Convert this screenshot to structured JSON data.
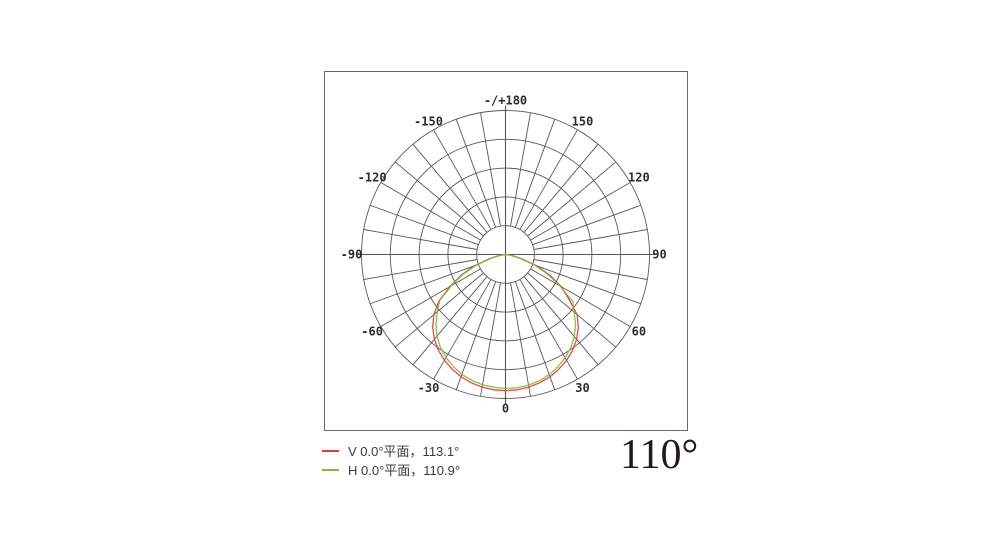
{
  "chart_data": {
    "type": "polar",
    "subtype": "photometric-light-distribution",
    "zero_angle_position": "bottom",
    "angle_step_labels_deg": 30,
    "spoke_step_deg": 10,
    "rings_fraction_of_max": [
      0.2,
      0.4,
      0.6,
      0.8,
      1.0
    ],
    "grid_color": "#5a5657",
    "axis_color": "#5a5657",
    "angle_labels": [
      {
        "angle": 180,
        "text": "-/+180"
      },
      {
        "angle": 150,
        "text": "150"
      },
      {
        "angle": 120,
        "text": "120"
      },
      {
        "angle": 90,
        "text": "90"
      },
      {
        "angle": 60,
        "text": "60"
      },
      {
        "angle": 30,
        "text": "30"
      },
      {
        "angle": 0,
        "text": "0"
      },
      {
        "angle": -30,
        "text": "-30"
      },
      {
        "angle": -60,
        "text": "-60"
      },
      {
        "angle": -90,
        "text": "-90"
      },
      {
        "angle": -120,
        "text": "-120"
      },
      {
        "angle": -150,
        "text": "-150"
      }
    ],
    "series": [
      {
        "name": "V 0.0°平面",
        "beam_angle": "113.1°",
        "color": "#e23a3c",
        "points": [
          [
            -90,
            0
          ],
          [
            -85,
            0.015
          ],
          [
            -80,
            0.05
          ],
          [
            -75,
            0.12
          ],
          [
            -70,
            0.23
          ],
          [
            -65,
            0.34
          ],
          [
            -60,
            0.445
          ],
          [
            -55,
            0.565
          ],
          [
            -50,
            0.65
          ],
          [
            -45,
            0.715
          ],
          [
            -40,
            0.768
          ],
          [
            -35,
            0.812
          ],
          [
            -30,
            0.848
          ],
          [
            -25,
            0.878
          ],
          [
            -20,
            0.903
          ],
          [
            -15,
            0.922
          ],
          [
            -10,
            0.935
          ],
          [
            -5,
            0.943
          ],
          [
            0,
            0.945
          ],
          [
            5,
            0.943
          ],
          [
            10,
            0.935
          ],
          [
            15,
            0.922
          ],
          [
            20,
            0.903
          ],
          [
            25,
            0.878
          ],
          [
            30,
            0.848
          ],
          [
            35,
            0.812
          ],
          [
            40,
            0.768
          ],
          [
            45,
            0.715
          ],
          [
            50,
            0.65
          ],
          [
            55,
            0.535
          ],
          [
            60,
            0.445
          ],
          [
            65,
            0.34
          ],
          [
            70,
            0.23
          ],
          [
            75,
            0.12
          ],
          [
            80,
            0.05
          ],
          [
            85,
            0.015
          ],
          [
            90,
            0
          ]
        ]
      },
      {
        "name": "H 0.0°平面",
        "beam_angle": "110.9°",
        "color": "#85b93e",
        "points": [
          [
            -90,
            0
          ],
          [
            -85,
            0.012
          ],
          [
            -80,
            0.042
          ],
          [
            -75,
            0.105
          ],
          [
            -70,
            0.215
          ],
          [
            -65,
            0.328
          ],
          [
            -60,
            0.435
          ],
          [
            -55,
            0.558
          ],
          [
            -50,
            0.618
          ],
          [
            -45,
            0.684
          ],
          [
            -40,
            0.74
          ],
          [
            -35,
            0.788
          ],
          [
            -30,
            0.826
          ],
          [
            -25,
            0.858
          ],
          [
            -20,
            0.885
          ],
          [
            -15,
            0.905
          ],
          [
            -10,
            0.918
          ],
          [
            -5,
            0.926
          ],
          [
            0,
            0.93
          ],
          [
            5,
            0.928
          ],
          [
            10,
            0.921
          ],
          [
            15,
            0.908
          ],
          [
            20,
            0.888
          ],
          [
            25,
            0.861
          ],
          [
            30,
            0.828
          ],
          [
            35,
            0.79
          ],
          [
            40,
            0.743
          ],
          [
            45,
            0.688
          ],
          [
            50,
            0.622
          ],
          [
            55,
            0.57
          ],
          [
            60,
            0.435
          ],
          [
            65,
            0.322
          ],
          [
            70,
            0.212
          ],
          [
            75,
            0.102
          ],
          [
            80,
            0.04
          ],
          [
            85,
            0.01
          ],
          [
            90,
            0
          ]
        ]
      }
    ]
  },
  "legend": {
    "items": [
      {
        "label": "V 0.0°平面，113.1°",
        "color": "#e23a3c"
      },
      {
        "label": "H 0.0°平面，110.9°",
        "color": "#85b93e"
      }
    ]
  },
  "beam_angle_label": "110°"
}
